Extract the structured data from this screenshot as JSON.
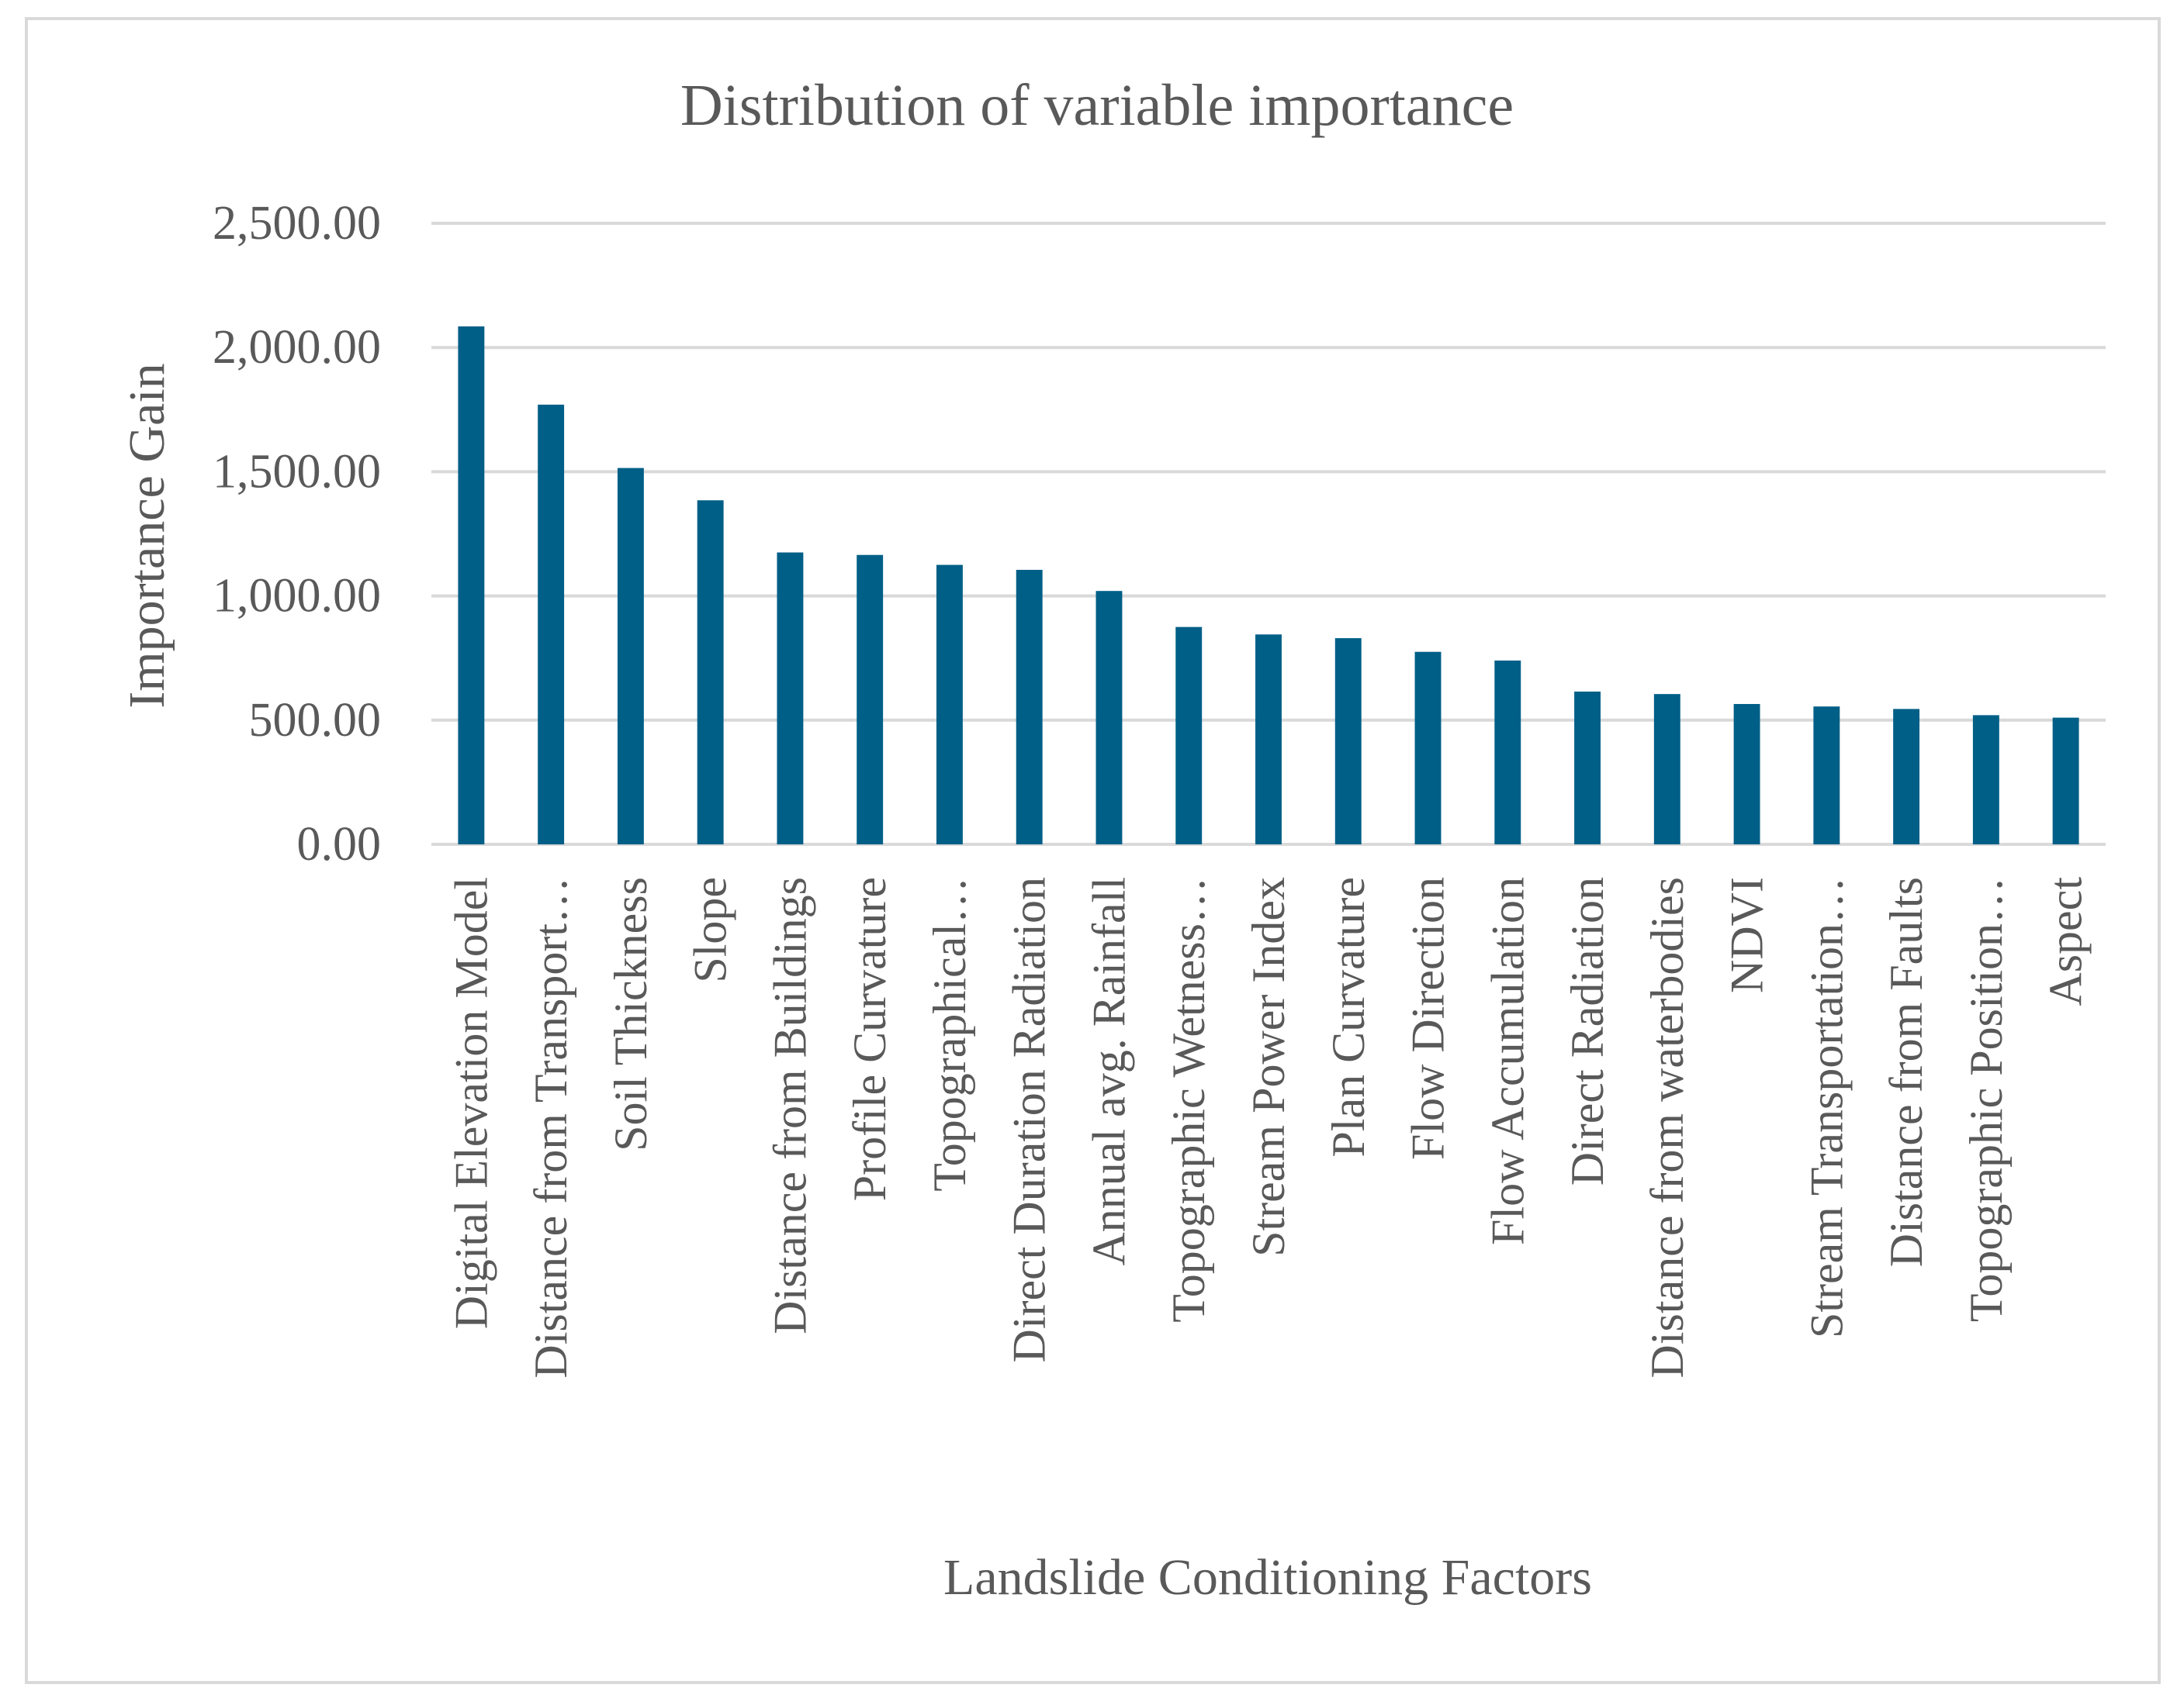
{
  "chart_data": {
    "type": "bar",
    "title": "Distribution of variable importance",
    "xlabel": "Landslide Conditioning Factors",
    "ylabel": "Importance  Gain",
    "ylim": [
      0,
      2500
    ],
    "y_ticks": [
      "0.00",
      "500.00",
      "1,000.00",
      "1,500.00",
      "2,000.00",
      "2,500.00"
    ],
    "grid": true,
    "legend": "none",
    "bar_color": "#005f87",
    "categories": [
      "Digital Elevation Model",
      "Distance from Transport…",
      "Soil Thickness",
      "Slope",
      "Distance from Buildings",
      "Profile Curvature",
      "Topographical…",
      "Direct Duration Radiation",
      "Annual avg. Rainfall",
      "Topographic Wetness…",
      "Stream Power Index",
      "Plan Curvature",
      "Flow Direction",
      "Flow Accumulation",
      "Direct Radiation",
      "Distance from waterbodies",
      "NDVI",
      "Stream Transportation…",
      "Distance from Faults",
      "Topographic Position…",
      "Aspect"
    ],
    "values": [
      2085,
      1770,
      1515,
      1385,
      1175,
      1165,
      1125,
      1105,
      1020,
      875,
      845,
      830,
      775,
      740,
      615,
      605,
      565,
      555,
      545,
      520,
      510
    ]
  }
}
